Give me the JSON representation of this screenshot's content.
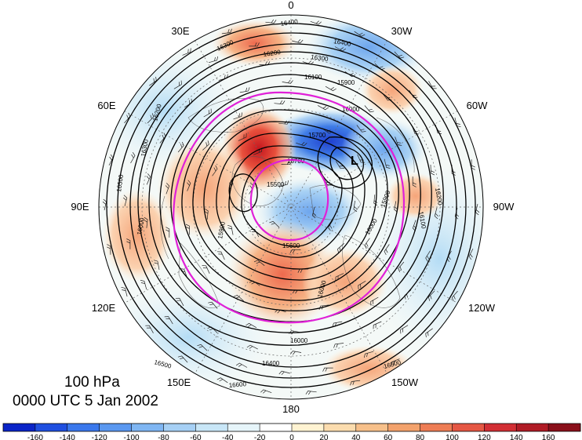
{
  "title": {
    "level": "100 hPa",
    "time": "0000 UTC 5 Jan 2002"
  },
  "longitude_labels": {
    "lon_0": "0",
    "lon_30w": "30W",
    "lon_60w": "60W",
    "lon_90w": "90W",
    "lon_120w": "120W",
    "lon_150w": "150W",
    "lon_180": "180",
    "lon_150e": "150E",
    "lon_120e": "120E",
    "lon_90e": "90E",
    "lon_60e": "60E",
    "lon_30e": "30E"
  },
  "contour_labels": [
    "16400",
    "16300",
    "16200",
    "16100",
    "16000",
    "15900",
    "15700",
    "15600",
    "15500",
    "16500",
    "16600"
  ],
  "low_marker": "L",
  "colorbar": {
    "colors": [
      "#0a24c8",
      "#1f4fe0",
      "#3a78ec",
      "#5a98f0",
      "#7fb6f3",
      "#a6d0f5",
      "#c8e6f7",
      "#e6f5fa",
      "#ffffff",
      "#fff3d2",
      "#fbdcae",
      "#f7c08a",
      "#f3a26c",
      "#ee7d55",
      "#e55744",
      "#d22e34",
      "#b01b25",
      "#8a0f1a"
    ],
    "tick_labels": [
      "-160",
      "-140",
      "-120",
      "-100",
      "-80",
      "-60",
      "-40",
      "-20",
      "0",
      "20",
      "40",
      "60",
      "80",
      "100",
      "120",
      "140",
      "160"
    ]
  },
  "map_colors": {
    "contour": "#000000",
    "jet_outline": "#e020d8",
    "positive_anomaly": "#e8503c",
    "negative_anomaly": "#3a6fe0"
  }
}
